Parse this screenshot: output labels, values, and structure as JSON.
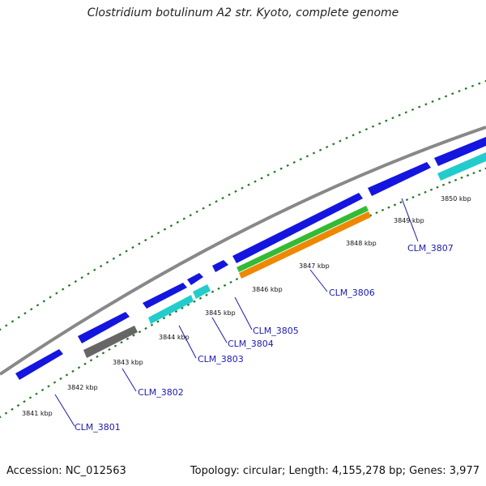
{
  "title": "Clostridium botulinum A2 str. Kyoto, complete genome",
  "footer": {
    "accession": "Accession: NC_012563",
    "summary": "Topology: circular; Length: 4,155,278 bp; Genes: 3,977"
  },
  "colors": {
    "cds": "#1515e0",
    "cyan": "#22cccc",
    "gray_feature": "#666666",
    "green": "#33bb33",
    "orange": "#ee8800",
    "backbone": "#888888",
    "tick": "#227722",
    "label": "#1a1ab3"
  },
  "ticks": [
    {
      "label": "3841 kbp"
    },
    {
      "label": "3842 kbp"
    },
    {
      "label": "3843 kbp"
    },
    {
      "label": "3844 kbp"
    },
    {
      "label": "3845 kbp"
    },
    {
      "label": "3846 kbp"
    },
    {
      "label": "3847 kbp"
    },
    {
      "label": "3848 kbp"
    },
    {
      "label": "3849 kbp"
    },
    {
      "label": "3850 kbp"
    }
  ],
  "genes": [
    {
      "label": "CLM_3801"
    },
    {
      "label": "CLM_3802"
    },
    {
      "label": "CLM_3803"
    },
    {
      "label": "CLM_3804"
    },
    {
      "label": "CLM_3805"
    },
    {
      "label": "CLM_3806"
    },
    {
      "label": "CLM_3807"
    }
  ]
}
